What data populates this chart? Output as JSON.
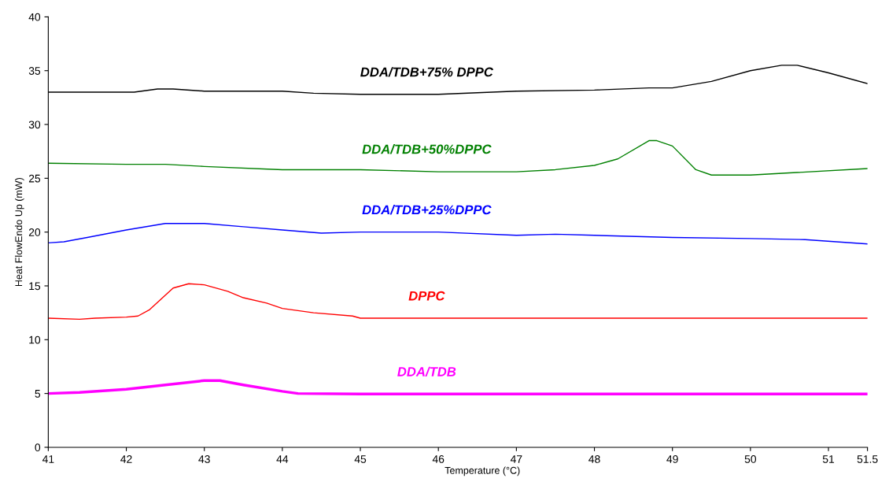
{
  "chart_data": {
    "type": "line",
    "xlabel": "Temperature (°C)",
    "ylabel": "Heat FlowEndo Up (mW)",
    "xlim": [
      41,
      51.5
    ],
    "xticks": [
      41,
      42,
      43,
      44,
      45,
      46,
      47,
      48,
      49,
      50,
      51,
      51.5
    ],
    "ylim": [
      0,
      40
    ],
    "yticks": [
      0,
      5,
      10,
      15,
      20,
      25,
      30,
      35,
      40
    ],
    "grid": false,
    "legend": false,
    "marker": "none",
    "line_style": "solid",
    "series": [
      {
        "name": "DDA/TDB+75% DPPC",
        "color": "#000000",
        "x": [
          41,
          42,
          42.1,
          42.4,
          42.6,
          43,
          44,
          44.4,
          45,
          46,
          47,
          48,
          48.7,
          49,
          49.5,
          50,
          50.4,
          50.6,
          51,
          51.5
        ],
        "values": [
          33.0,
          33.0,
          33.0,
          33.3,
          33.3,
          33.1,
          33.1,
          32.9,
          32.8,
          32.8,
          33.1,
          33.2,
          33.4,
          33.4,
          34.0,
          35.0,
          35.5,
          35.5,
          34.8,
          33.8
        ]
      },
      {
        "name": "DDA/TDB+50%DPPC",
        "color": "#008000",
        "x": [
          41,
          42,
          42.5,
          43,
          44,
          45,
          46,
          47,
          47.5,
          48,
          48.3,
          48.7,
          48.8,
          49.0,
          49.3,
          49.5,
          50,
          50.5,
          51.5
        ],
        "values": [
          26.4,
          26.3,
          26.3,
          26.1,
          25.8,
          25.8,
          25.6,
          25.6,
          25.8,
          26.2,
          26.8,
          28.5,
          28.5,
          28.0,
          25.8,
          25.3,
          25.3,
          25.5,
          25.9
        ]
      },
      {
        "name": "DDA/TDB+25%DPPC",
        "color": "#0000ff",
        "x": [
          41,
          41.2,
          41.5,
          42,
          42.5,
          43,
          43.5,
          44,
          44.5,
          45,
          46,
          47,
          47.5,
          48,
          49,
          50,
          50.7,
          51.5
        ],
        "values": [
          19.0,
          19.1,
          19.5,
          20.2,
          20.8,
          20.8,
          20.5,
          20.2,
          19.9,
          20.0,
          20.0,
          19.7,
          19.8,
          19.7,
          19.5,
          19.4,
          19.3,
          18.9
        ]
      },
      {
        "name": "DPPC",
        "color": "#ff0000",
        "x": [
          41,
          41.4,
          41.6,
          42,
          42.15,
          42.3,
          42.6,
          42.8,
          43,
          43.3,
          43.5,
          43.8,
          44,
          44.4,
          44.9,
          45,
          46,
          51.5
        ],
        "values": [
          12.0,
          11.9,
          12.0,
          12.1,
          12.2,
          12.8,
          14.8,
          15.2,
          15.1,
          14.5,
          13.9,
          13.4,
          12.9,
          12.5,
          12.2,
          12.0,
          12.0,
          12.0
        ]
      },
      {
        "name": "DDA/TDB",
        "color": "#ff00ff",
        "x": [
          41,
          41.4,
          42,
          42.5,
          43,
          43.2,
          43.5,
          44,
          44.2,
          45,
          51.5
        ],
        "values": [
          5.0,
          5.1,
          5.4,
          5.8,
          6.2,
          6.2,
          5.8,
          5.2,
          5.0,
          4.95,
          4.95
        ]
      }
    ]
  }
}
